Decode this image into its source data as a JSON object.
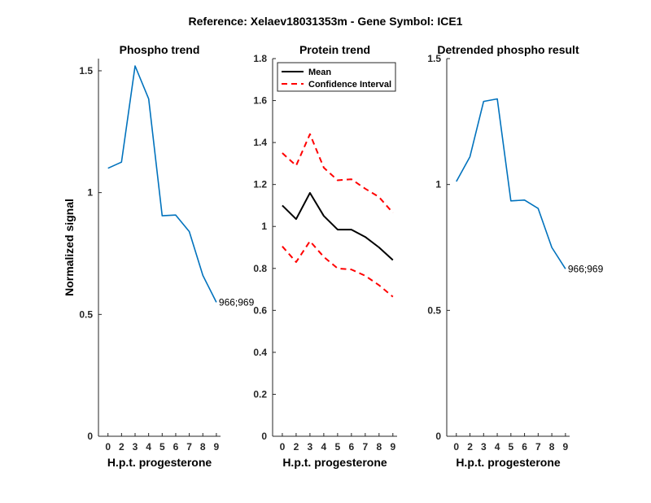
{
  "figure": {
    "suptitle": "Reference:  Xelaev18031353m - Gene Symbol:  ICE1"
  },
  "chart_data": [
    {
      "type": "line",
      "title": "Phospho trend",
      "xlabel": "H.p.t. progesterone",
      "ylabel": "Normalized signal",
      "x": [
        0,
        2,
        3,
        4,
        5,
        6,
        7,
        8,
        9
      ],
      "xticks": [
        "0",
        "2",
        "3",
        "4",
        "5",
        "6",
        "7",
        "8",
        "9"
      ],
      "ylim": [
        0,
        1.55
      ],
      "yticks": [
        0,
        0.5,
        1,
        1.5
      ],
      "yticklabels": [
        "0",
        "0.5",
        "1",
        "1.5"
      ],
      "series": [
        {
          "name": "",
          "color": "#0072BD",
          "style": "solid",
          "values": [
            1.1,
            1.125,
            1.52,
            1.385,
            0.905,
            0.908,
            0.84,
            0.66,
            0.55
          ]
        }
      ],
      "annotation": "966;969",
      "grid": false
    },
    {
      "type": "line",
      "title": "Protein trend",
      "xlabel": "H.p.t. progesterone",
      "ylabel": "",
      "x": [
        0,
        2,
        3,
        4,
        5,
        6,
        7,
        8,
        9
      ],
      "xticks": [
        "0",
        "2",
        "3",
        "4",
        "5",
        "6",
        "7",
        "8",
        "9"
      ],
      "ylim": [
        0,
        1.8
      ],
      "yticks": [
        0,
        0.2,
        0.4,
        0.6,
        0.8,
        1,
        1.2,
        1.4,
        1.6,
        1.8
      ],
      "yticklabels": [
        "0",
        "0.2",
        "0.4",
        "0.6",
        "0.8",
        "1",
        "1.2",
        "1.4",
        "1.6",
        "1.8"
      ],
      "series": [
        {
          "name": "Mean",
          "color": "#000000",
          "style": "solid",
          "values": [
            1.1,
            1.035,
            1.16,
            1.05,
            0.985,
            0.985,
            0.95,
            0.9,
            0.84
          ]
        },
        {
          "name": "Confidence Interval",
          "color": "#FF0000",
          "style": "dashed",
          "values": [
            1.35,
            1.29,
            1.44,
            1.28,
            1.22,
            1.225,
            1.18,
            1.14,
            1.065
          ]
        },
        {
          "name": "",
          "color": "#FF0000",
          "style": "dashed",
          "values": [
            0.905,
            0.83,
            0.93,
            0.855,
            0.8,
            0.795,
            0.765,
            0.72,
            0.665
          ]
        }
      ],
      "legend": {
        "placement": "top-left",
        "entries": [
          "Mean",
          "Confidence Interval"
        ]
      },
      "grid": false
    },
    {
      "type": "line",
      "title": "Detrended phospho result",
      "xlabel": "H.p.t. progesterone",
      "ylabel": "",
      "x": [
        0,
        2,
        3,
        4,
        5,
        6,
        7,
        8,
        9
      ],
      "xticks": [
        "0",
        "2",
        "3",
        "4",
        "5",
        "6",
        "7",
        "8",
        "9"
      ],
      "ylim": [
        0,
        1.5
      ],
      "yticks": [
        0,
        0.5,
        1,
        1.5
      ],
      "yticklabels": [
        "0",
        "0.5",
        "1",
        "1.5"
      ],
      "series": [
        {
          "name": "",
          "color": "#0072BD",
          "style": "solid",
          "values": [
            1.012,
            1.11,
            1.33,
            1.34,
            0.935,
            0.938,
            0.905,
            0.75,
            0.665
          ]
        }
      ],
      "annotation": "966;969",
      "grid": false
    }
  ]
}
